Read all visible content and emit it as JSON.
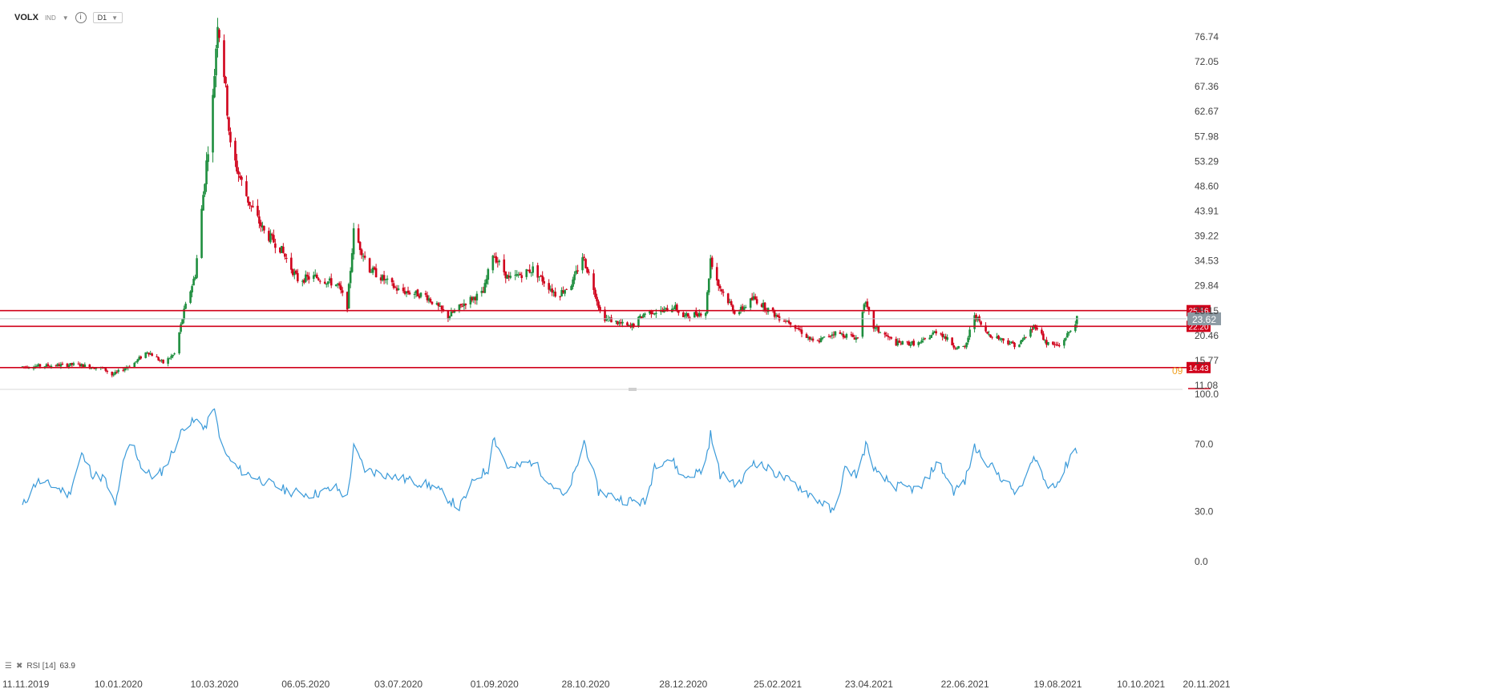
{
  "toolbar": {
    "symbol": "VOLX",
    "type": "IND",
    "timeframe": "D1",
    "info_icon": "info-icon",
    "caret_icon": "chevron-down-icon"
  },
  "colors": {
    "up": "#1e8e3e",
    "down": "#d0021b",
    "level": "#d0021b",
    "rsi": "#3a9ad9",
    "current": "#8c9aa3"
  },
  "chart_data": [
    {
      "type": "candlestick",
      "title": "",
      "price_ticks": [
        "76.74",
        "72.05",
        "67.36",
        "62.67",
        "57.98",
        "53.29",
        "48.60",
        "43.91",
        "39.22",
        "34.53",
        "29.84",
        "25.15",
        "20.46",
        "15.77",
        "11.08"
      ],
      "x_ticks": [
        "11.11.2019",
        "10.01.2020",
        "10.03.2020",
        "06.05.2020",
        "03.07.2020",
        "01.09.2020",
        "28.10.2020",
        "28.12.2020",
        "25.02.2021",
        "23.04.2021",
        "22.06.2021",
        "19.08.2021",
        "10.10.2021",
        "20.11.2021"
      ],
      "ylim": [
        11.08,
        80.5
      ],
      "levels": [
        {
          "label": "25.16",
          "value": 25.16
        },
        {
          "label": "22.20",
          "value": 22.2
        },
        {
          "label": "14.43",
          "value": 14.43
        }
      ],
      "current_price": {
        "label": "23.62",
        "value": 23.62
      },
      "annotation": {
        "label": "09",
        "value": 13.8
      },
      "approx_path": [
        [
          "11.11.2019",
          14.6
        ],
        [
          "15.12.2019",
          15.0
        ],
        [
          "01.01.2020",
          14.2
        ],
        [
          "06.01.2020",
          13.0
        ],
        [
          "20.01.2020",
          15.3
        ],
        [
          "28.01.2020",
          17.5
        ],
        [
          "07.02.2020",
          15.3
        ],
        [
          "14.02.2020",
          17.0
        ],
        [
          "20.02.2020",
          25.0
        ],
        [
          "27.02.2020",
          32.0
        ],
        [
          "03.03.2020",
          47.0
        ],
        [
          "09.03.2020",
          65.0
        ],
        [
          "12.03.2020",
          80.0
        ],
        [
          "16.03.2020",
          70.0
        ],
        [
          "20.03.2020",
          56.0
        ],
        [
          "25.03.2020",
          51.0
        ],
        [
          "31.03.2020",
          46.0
        ],
        [
          "10.04.2020",
          40.0
        ],
        [
          "20.04.2020",
          37.0
        ],
        [
          "01.05.2020",
          31.0
        ],
        [
          "12.05.2020",
          31.5
        ],
        [
          "26.05.2020",
          30.0
        ],
        [
          "01.06.2020",
          26.0
        ],
        [
          "05.06.2020",
          40.0
        ],
        [
          "15.06.2020",
          33.0
        ],
        [
          "03.07.2020",
          29.0
        ],
        [
          "20.07.2020",
          28.0
        ],
        [
          "03.08.2020",
          24.0
        ],
        [
          "15.08.2020",
          27.0
        ],
        [
          "25.08.2020",
          28.5
        ],
        [
          "31.08.2020",
          36.0
        ],
        [
          "10.09.2020",
          31.0
        ],
        [
          "25.09.2020",
          33.0
        ],
        [
          "10.10.2020",
          28.0
        ],
        [
          "20.10.2020",
          30.5
        ],
        [
          "26.10.2020",
          35.5
        ],
        [
          "02.11.2020",
          29.5
        ],
        [
          "07.11.2020",
          24.0
        ],
        [
          "25.11.2020",
          22.0
        ],
        [
          "05.12.2020",
          25.0
        ],
        [
          "15.12.2020",
          25.0
        ],
        [
          "22.12.2020",
          26.0
        ],
        [
          "28.12.2020",
          24.0
        ],
        [
          "11.01.2021",
          25.0
        ],
        [
          "14.01.2021",
          35.0
        ],
        [
          "19.01.2021",
          30.0
        ],
        [
          "30.01.2021",
          24.5
        ],
        [
          "10.02.2021",
          27.5
        ],
        [
          "25.02.2021",
          24.0
        ],
        [
          "05.03.2021",
          23.0
        ],
        [
          "20.03.2021",
          19.0
        ],
        [
          "01.04.2021",
          21.0
        ],
        [
          "16.04.2021",
          20.0
        ],
        [
          "20.04.2021",
          27.0
        ],
        [
          "26.04.2021",
          22.0
        ],
        [
          "10.05.2021",
          19.0
        ],
        [
          "25.05.2021",
          19.0
        ],
        [
          "05.06.2021",
          21.5
        ],
        [
          "15.06.2021",
          18.5
        ],
        [
          "22.06.2021",
          18.0
        ],
        [
          "28.06.2021",
          24.5
        ],
        [
          "05.07.2021",
          21.0
        ],
        [
          "25.07.2021",
          18.5
        ],
        [
          "05.08.2021",
          22.5
        ],
        [
          "12.08.2021",
          19.0
        ],
        [
          "20.08.2021",
          18.5
        ],
        [
          "27.08.2021",
          21.5
        ],
        [
          "31.08.2021",
          23.6
        ]
      ]
    },
    {
      "type": "line",
      "title": "RSI [14]",
      "series": [
        {
          "name": "RSI",
          "last": "63.9"
        }
      ],
      "y_ticks": [
        "100.0",
        "70.0",
        "30.0",
        "0.0"
      ],
      "ylim": [
        0,
        100
      ],
      "approx_path": [
        [
          "11.11.2019",
          33
        ],
        [
          "20.11.2019",
          48
        ],
        [
          "01.12.2019",
          45
        ],
        [
          "10.12.2019",
          40
        ],
        [
          "18.12.2019",
          64
        ],
        [
          "25.12.2019",
          52
        ],
        [
          "01.01.2020",
          50
        ],
        [
          "08.01.2020",
          33
        ],
        [
          "12.01.2020",
          55
        ],
        [
          "18.01.2020",
          73
        ],
        [
          "25.01.2020",
          55
        ],
        [
          "02.02.2020",
          50
        ],
        [
          "08.02.2020",
          56
        ],
        [
          "14.02.2020",
          68
        ],
        [
          "20.02.2020",
          81
        ],
        [
          "28.02.2020",
          84
        ],
        [
          "05.03.2020",
          80
        ],
        [
          "09.03.2020",
          93
        ],
        [
          "16.03.2020",
          65
        ],
        [
          "25.03.2020",
          55
        ],
        [
          "10.04.2020",
          48
        ],
        [
          "25.04.2020",
          42
        ],
        [
          "10.05.2020",
          40
        ],
        [
          "25.05.2020",
          44
        ],
        [
          "01.06.2020",
          38
        ],
        [
          "05.06.2020",
          68
        ],
        [
          "12.06.2020",
          55
        ],
        [
          "03.07.2020",
          50
        ],
        [
          "25.07.2020",
          45
        ],
        [
          "10.08.2020",
          32
        ],
        [
          "20.08.2020",
          50
        ],
        [
          "28.08.2020",
          55
        ],
        [
          "31.08.2020",
          75
        ],
        [
          "10.09.2020",
          55
        ],
        [
          "25.09.2020",
          60
        ],
        [
          "05.10.2020",
          48
        ],
        [
          "15.10.2020",
          38
        ],
        [
          "22.10.2020",
          55
        ],
        [
          "27.10.2020",
          72
        ],
        [
          "05.11.2020",
          42
        ],
        [
          "20.11.2020",
          37
        ],
        [
          "05.12.2020",
          35
        ],
        [
          "10.12.2020",
          58
        ],
        [
          "20.12.2020",
          62
        ],
        [
          "28.12.2020",
          50
        ],
        [
          "10.01.2021",
          55
        ],
        [
          "14.01.2021",
          76
        ],
        [
          "20.01.2021",
          52
        ],
        [
          "01.02.2021",
          46
        ],
        [
          "10.02.2021",
          60
        ],
        [
          "25.02.2021",
          52
        ],
        [
          "10.03.2021",
          45
        ],
        [
          "25.03.2021",
          35
        ],
        [
          "01.04.2021",
          29
        ],
        [
          "08.04.2021",
          55
        ],
        [
          "16.04.2021",
          52
        ],
        [
          "21.04.2021",
          70
        ],
        [
          "28.04.2021",
          52
        ],
        [
          "10.05.2021",
          45
        ],
        [
          "25.05.2021",
          43
        ],
        [
          "05.06.2021",
          60
        ],
        [
          "15.06.2021",
          42
        ],
        [
          "22.06.2021",
          48
        ],
        [
          "28.06.2021",
          68
        ],
        [
          "10.07.2021",
          55
        ],
        [
          "25.07.2021",
          40
        ],
        [
          "05.08.2021",
          63
        ],
        [
          "12.08.2021",
          45
        ],
        [
          "20.08.2021",
          48
        ],
        [
          "26.08.2021",
          61
        ],
        [
          "29.08.2021",
          71
        ],
        [
          "31.08.2021",
          63.9
        ]
      ]
    }
  ]
}
